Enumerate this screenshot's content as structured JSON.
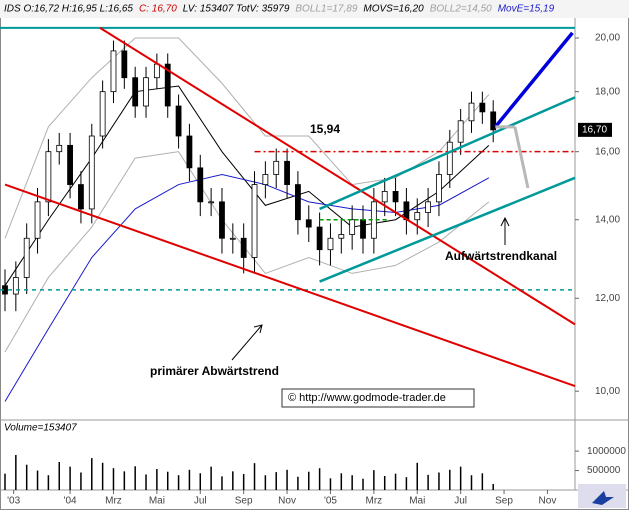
{
  "chart_data": [
    {
      "type": "candlestick",
      "header": [
        {
          "text": "IDS O:16,72 H:16,95 L:16,65",
          "color": "#000000"
        },
        {
          "text": "C: 16,70",
          "color": "#d00000"
        },
        {
          "text": "LV: 153407 TotV: 35979",
          "color": "#000000"
        },
        {
          "text": "BOLL1=17,89",
          "color": "#a0a0a0"
        },
        {
          "text": "MOVS=16,20",
          "color": "#000000"
        },
        {
          "text": "BOLL2=14,50",
          "color": "#a0a0a0"
        },
        {
          "text": "MovE=15,19",
          "color": "#1a1acc"
        }
      ],
      "log_scale": true,
      "xlim": [
        -3.23,
        23.27
      ],
      "xticks": [
        {
          "value": -2.6,
          "label": "'03"
        },
        {
          "value": 0,
          "label": "'04"
        },
        {
          "value": 2,
          "label": "Mrz"
        },
        {
          "value": 4,
          "label": "Mai"
        },
        {
          "value": 6,
          "label": "Jul"
        },
        {
          "value": 8,
          "label": "Sep"
        },
        {
          "value": 10,
          "label": "Nov"
        },
        {
          "value": 12,
          "label": "'05"
        },
        {
          "value": 14,
          "label": "Mrz"
        },
        {
          "value": 16,
          "label": "Mai"
        },
        {
          "value": 18,
          "label": "Jul"
        },
        {
          "value": 20,
          "label": "Sep"
        },
        {
          "value": 22,
          "label": "Nov"
        }
      ],
      "ylim": [
        9.45,
        20.8
      ],
      "yticks": [
        {
          "value": 10,
          "label": "10,00"
        },
        {
          "value": 12,
          "label": "12,00"
        },
        {
          "value": 14,
          "label": "14,00"
        },
        {
          "value": 16,
          "label": "16,00"
        },
        {
          "value": 18,
          "label": "18,00"
        },
        {
          "value": 20,
          "label": "20,00"
        }
      ],
      "x": [
        -3,
        -2.5,
        -2,
        -1.5,
        -1,
        -0.5,
        0,
        0.5,
        1,
        1.5,
        2,
        2.5,
        3,
        3.5,
        4,
        4.5,
        5,
        5.5,
        6,
        6.5,
        7,
        7.5,
        8,
        8.5,
        9,
        9.5,
        10,
        10.5,
        11,
        11.5,
        12,
        12.5,
        13,
        13.5,
        14,
        14.5,
        15,
        15.5,
        16,
        16.5,
        17,
        17.5,
        18,
        18.5,
        19,
        19.5
      ],
      "open": [
        12.3,
        12.1,
        12.5,
        13.5,
        14.5,
        16.0,
        16.2,
        15.0,
        14.3,
        16.5,
        18.0,
        19.5,
        18.5,
        17.5,
        18.5,
        19.0,
        17.5,
        16.5,
        15.5,
        14.5,
        14.5,
        13.5,
        13.5,
        13.0,
        15.0,
        15.3,
        15.7,
        15.0,
        14.0,
        13.8,
        13.2,
        13.5,
        13.6,
        14.0,
        13.5,
        14.5,
        14.8,
        14.5,
        14.0,
        14.2,
        14.5,
        15.3,
        16.3,
        17.0,
        17.6,
        17.3
      ],
      "high": [
        12.7,
        12.9,
        13.9,
        14.9,
        16.4,
        16.6,
        16.6,
        15.4,
        16.9,
        18.4,
        19.9,
        19.9,
        18.9,
        18.9,
        19.4,
        19.4,
        17.9,
        16.9,
        15.9,
        14.9,
        14.9,
        13.9,
        13.9,
        15.4,
        15.7,
        16.1,
        16.1,
        15.4,
        14.4,
        14.2,
        13.9,
        14.0,
        14.4,
        14.4,
        14.9,
        15.2,
        15.2,
        14.9,
        14.6,
        14.9,
        15.7,
        16.7,
        17.4,
        18.0,
        18.0,
        17.7
      ],
      "low": [
        11.7,
        11.7,
        12.1,
        13.1,
        14.1,
        15.6,
        14.6,
        13.9,
        13.9,
        16.1,
        17.6,
        18.1,
        17.1,
        17.1,
        18.1,
        17.1,
        16.1,
        15.1,
        14.1,
        14.1,
        13.1,
        13.1,
        12.6,
        12.6,
        14.6,
        14.9,
        14.6,
        13.6,
        13.4,
        12.8,
        12.8,
        13.1,
        13.2,
        13.1,
        13.1,
        14.1,
        14.1,
        13.6,
        13.6,
        13.8,
        14.1,
        14.9,
        15.9,
        16.6,
        16.9,
        16.3
      ],
      "close": [
        12.1,
        12.5,
        13.5,
        14.5,
        16.0,
        16.2,
        15.0,
        14.3,
        16.5,
        18.0,
        19.5,
        18.5,
        17.5,
        18.5,
        19.0,
        17.5,
        16.5,
        15.5,
        14.5,
        14.5,
        13.5,
        13.5,
        13.0,
        15.0,
        15.3,
        15.7,
        15.0,
        14.0,
        13.8,
        13.2,
        13.5,
        13.6,
        14.0,
        13.5,
        14.5,
        14.8,
        14.5,
        14.0,
        14.2,
        14.5,
        15.3,
        16.3,
        17.0,
        17.6,
        17.3,
        16.7
      ],
      "last_price": {
        "value": 16.7,
        "label": "16,70"
      },
      "indicators": [
        {
          "color": "#b0b0b0",
          "x": [
            -3,
            -1,
            1,
            3,
            5,
            7,
            9,
            11,
            13,
            15,
            17,
            19.3
          ],
          "values": [
            13.5,
            16.8,
            18.5,
            20.0,
            20.0,
            18.3,
            16.5,
            16.5,
            15.0,
            15.2,
            16.0,
            17.9
          ]
        },
        {
          "color": "#b0b0b0",
          "x": [
            -3,
            -1,
            1,
            3,
            5,
            7,
            9,
            11,
            13,
            15,
            17,
            19.3
          ],
          "values": [
            10.8,
            12.5,
            13.8,
            15.8,
            16.0,
            14.0,
            12.6,
            13.0,
            12.6,
            12.8,
            13.4,
            14.5
          ]
        },
        {
          "color": "#000000",
          "x": [
            -3,
            -1,
            1,
            3,
            5,
            7,
            9,
            11,
            13,
            15,
            17,
            19.3
          ],
          "values": [
            12.3,
            14.0,
            15.8,
            18.0,
            18.2,
            16.0,
            14.4,
            14.8,
            13.8,
            14.0,
            14.8,
            16.2
          ]
        },
        {
          "color": "#1a1acc",
          "x": [
            -3,
            -1,
            1,
            3,
            5,
            7,
            9,
            11,
            13,
            15,
            17,
            19.3
          ],
          "values": [
            9.8,
            11.3,
            13.0,
            14.3,
            15.0,
            15.3,
            15.0,
            14.5,
            14.3,
            14.2,
            14.4,
            15.2
          ]
        }
      ],
      "lines": [
        {
          "color": "#009999",
          "width": 2,
          "dash": "",
          "x": [
            -3.23,
            23.27
          ],
          "y": [
            20.4,
            20.4
          ]
        },
        {
          "color": "#009999",
          "width": 1.5,
          "dash": "4,4",
          "x": [
            -3.23,
            23.27
          ],
          "y": [
            12.2,
            12.2
          ]
        },
        {
          "color": "#e00000",
          "width": 1.5,
          "dash": "6,3,2,3",
          "x": [
            8.5,
            23.27
          ],
          "y": [
            16.0,
            16.0
          ]
        },
        {
          "color": "#009900",
          "width": 1.5,
          "dash": "4,3",
          "x": [
            11.5,
            14.7
          ],
          "y": [
            14.0,
            14.0
          ]
        },
        {
          "color": "#e00000",
          "width": 2,
          "dash": "",
          "x": [
            1.38,
            23.27
          ],
          "y": [
            20.4,
            11.4
          ]
        },
        {
          "color": "#e00000",
          "width": 2,
          "dash": "",
          "x": [
            -3.0,
            23.27
          ],
          "y": [
            15.0,
            10.1
          ]
        },
        {
          "color": "#009999",
          "width": 2.5,
          "dash": "",
          "x": [
            11.5,
            23.27
          ],
          "y": [
            14.3,
            17.8
          ]
        },
        {
          "color": "#009999",
          "width": 2.5,
          "dash": "",
          "x": [
            11.5,
            23.27
          ],
          "y": [
            12.4,
            15.2
          ]
        },
        {
          "color": "#0000dd",
          "width": 3.5,
          "dash": "",
          "x": [
            19.6,
            23.15
          ],
          "y": [
            16.8,
            20.2
          ]
        },
        {
          "color": "#b8b8b8",
          "width": 3,
          "dash": "",
          "x": [
            19.6,
            20.5
          ],
          "y": [
            16.8,
            16.8
          ]
        },
        {
          "color": "#b8b8b8",
          "width": 3,
          "dash": "",
          "x": [
            20.5,
            21.1
          ],
          "y": [
            16.8,
            14.9
          ]
        }
      ],
      "annotations": [
        "15,94",
        "Aufwärtstrendkanal",
        "primärer Abwärtstrend",
        "© http://www.godmode-trader.de"
      ]
    },
    {
      "type": "bar",
      "label": "Volume=153407",
      "color": "#000000",
      "ylim": [
        0,
        1800000
      ],
      "yticks": [
        500000,
        1000000
      ],
      "values": [
        420000,
        900000,
        650000,
        500000,
        380000,
        720000,
        600000,
        450000,
        820000,
        700000,
        560000,
        480000,
        610000,
        400000,
        540000,
        470000,
        380000,
        520000,
        430000,
        600000,
        350000,
        480000,
        410000,
        690000,
        380000,
        460000,
        520000,
        340000,
        470000,
        560000,
        300000,
        430000,
        380000,
        290000,
        510000,
        360000,
        420000,
        330000,
        700000,
        390000,
        450000,
        520000,
        600000,
        380000,
        430000,
        153407
      ]
    }
  ]
}
